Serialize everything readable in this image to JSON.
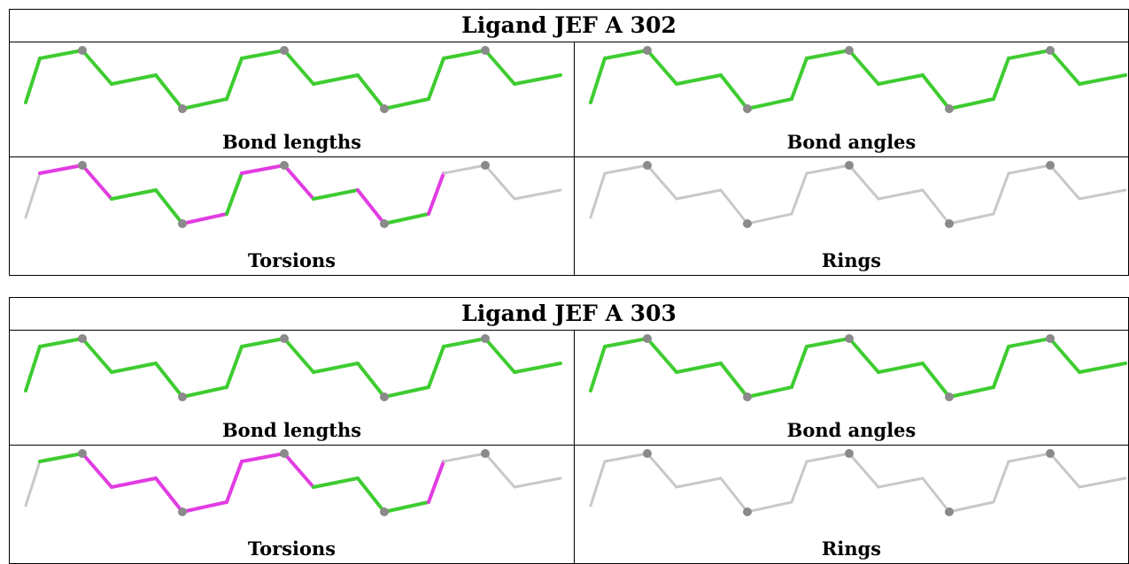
{
  "panels": [
    {
      "title": "Ligand JEF A 302",
      "cells": [
        {
          "caption": "Bond lengths",
          "colors": [
            "green",
            "green",
            "green",
            "green",
            "green",
            "green",
            "green",
            "green",
            "green",
            "green",
            "green",
            "green",
            "green",
            "green"
          ]
        },
        {
          "caption": "Bond angles",
          "colors": [
            "green",
            "green",
            "green",
            "green",
            "green",
            "green",
            "green",
            "green",
            "green",
            "green",
            "green",
            "green",
            "green",
            "green"
          ]
        },
        {
          "caption": "Torsions",
          "colors": [
            "grey",
            "magenta",
            "magenta",
            "green",
            "green",
            "magenta",
            "green",
            "magenta",
            "magenta",
            "green",
            "magenta",
            "green",
            "magenta",
            "grey"
          ]
        },
        {
          "caption": "Rings",
          "colors": [
            "grey",
            "grey",
            "grey",
            "grey",
            "grey",
            "grey",
            "grey",
            "grey",
            "grey",
            "grey",
            "grey",
            "grey",
            "grey",
            "grey"
          ]
        }
      ]
    },
    {
      "title": "Ligand JEF A 303",
      "cells": [
        {
          "caption": "Bond lengths",
          "colors": [
            "green",
            "green",
            "green",
            "green",
            "green",
            "green",
            "green",
            "green",
            "green",
            "green",
            "green",
            "green",
            "green",
            "green"
          ]
        },
        {
          "caption": "Bond angles",
          "colors": [
            "green",
            "green",
            "green",
            "green",
            "green",
            "green",
            "green",
            "green",
            "green",
            "green",
            "green",
            "green",
            "green",
            "green"
          ]
        },
        {
          "caption": "Torsions",
          "colors": [
            "grey",
            "green",
            "magenta",
            "magenta",
            "magenta",
            "magenta",
            "magenta",
            "magenta",
            "magenta",
            "green",
            "green",
            "green",
            "magenta",
            "grey"
          ]
        },
        {
          "caption": "Rings",
          "colors": [
            "grey",
            "grey",
            "grey",
            "grey",
            "grey",
            "grey",
            "grey",
            "grey",
            "grey",
            "grey",
            "grey",
            "grey",
            "grey",
            "grey"
          ]
        }
      ]
    }
  ],
  "palette": {
    "green": "#3ecc30",
    "magenta": "#e23ce2",
    "grey": "#c8c8c8",
    "atom": "#8a8a8a"
  }
}
